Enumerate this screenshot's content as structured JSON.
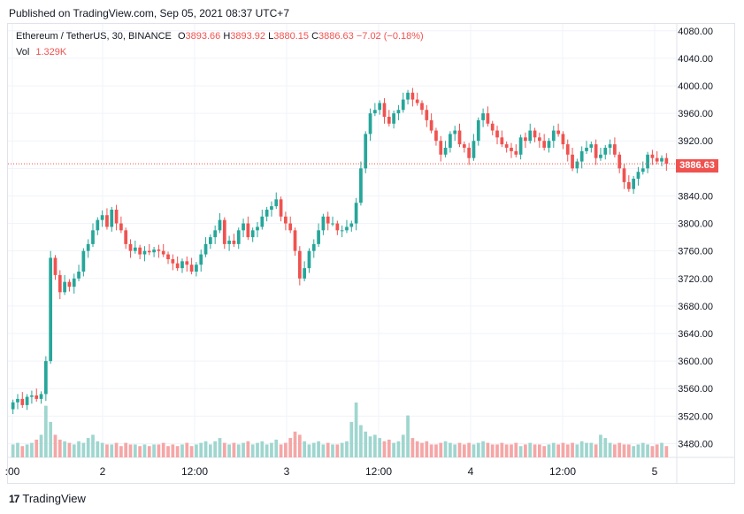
{
  "published": "Published on TradingView.com, Sep 05, 2021 08:37 UTC+7",
  "legend": {
    "symbol": "Ethereum / TetherUS, 30, BINANCE",
    "open_label": "O",
    "open": "3893.66",
    "high_label": "H",
    "high": "3893.92",
    "low_label": "L",
    "low": "3880.15",
    "close_label": "C",
    "close": "3886.63",
    "change": "−7.02 (−0.18%)"
  },
  "volume": {
    "label": "Vol",
    "value": "1.329K"
  },
  "last_price": "3886.63",
  "footer": {
    "brand": "TradingView",
    "logo": "17"
  },
  "colors": {
    "up": "#26a69a",
    "down": "#ef5350",
    "up_vol": "#9fd6cf",
    "down_vol": "#f5a6a6",
    "grid": "#f0f3fa"
  },
  "chart_data": {
    "type": "candlestick",
    "ylim": [
      3460,
      4090
    ],
    "y_ticks": [
      "4080.00",
      "4040.00",
      "4000.00",
      "3960.00",
      "3920.00",
      "3880.00",
      "3840.00",
      "3800.00",
      "3760.00",
      "3720.00",
      "3680.00",
      "3640.00",
      "3600.00",
      "3560.00",
      "3520.00",
      "3480.00"
    ],
    "x_ticks": [
      ":00",
      "2",
      "12:00",
      "3",
      "12:00",
      "4",
      "12:00",
      "5"
    ],
    "grid": true,
    "candles_close": [
      3540,
      3545,
      3536,
      3548,
      3550,
      3545,
      3552,
      3600,
      3750,
      3725,
      3700,
      3715,
      3708,
      3720,
      3730,
      3760,
      3770,
      3790,
      3805,
      3812,
      3795,
      3820,
      3800,
      3790,
      3770,
      3760,
      3765,
      3755,
      3760,
      3758,
      3762,
      3760,
      3755,
      3748,
      3742,
      3735,
      3745,
      3740,
      3730,
      3740,
      3755,
      3770,
      3780,
      3790,
      3805,
      3770,
      3775,
      3770,
      3790,
      3800,
      3780,
      3790,
      3795,
      3810,
      3820,
      3825,
      3835,
      3810,
      3800,
      3790,
      3760,
      3720,
      3735,
      3760,
      3770,
      3790,
      3810,
      3800,
      3800,
      3790,
      3790,
      3795,
      3800,
      3830,
      3880,
      3930,
      3960,
      3965,
      3975,
      3955,
      3945,
      3960,
      3965,
      3980,
      3990,
      3980,
      3975,
      3965,
      3950,
      3935,
      3920,
      3900,
      3910,
      3930,
      3935,
      3915,
      3910,
      3895,
      3920,
      3950,
      3960,
      3945,
      3935,
      3925,
      3915,
      3910,
      3905,
      3900,
      3925,
      3920,
      3935,
      3925,
      3920,
      3910,
      3920,
      3935,
      3930,
      3915,
      3900,
      3880,
      3890,
      3905,
      3910,
      3915,
      3895,
      3900,
      3910,
      3915,
      3900,
      3880,
      3860,
      3850,
      3865,
      3875,
      3880,
      3900,
      3895,
      3890,
      3895,
      3886.63
    ],
    "volumes": [
      8,
      9,
      7,
      8,
      9,
      11,
      14,
      32,
      22,
      14,
      11,
      10,
      9,
      8,
      10,
      9,
      12,
      14,
      10,
      9,
      8,
      8,
      9,
      7,
      9,
      8,
      8,
      7,
      8,
      7,
      8,
      8,
      9,
      7,
      8,
      7,
      8,
      9,
      7,
      8,
      9,
      10,
      8,
      10,
      12,
      9,
      8,
      9,
      8,
      9,
      10,
      8,
      9,
      10,
      8,
      9,
      11,
      8,
      9,
      12,
      16,
      14,
      10,
      8,
      9,
      10,
      8,
      9,
      8,
      8,
      9,
      10,
      22,
      34,
      20,
      16,
      13,
      14,
      12,
      10,
      11,
      9,
      10,
      14,
      26,
      12,
      10,
      9,
      10,
      8,
      8,
      9,
      10,
      9,
      8,
      9,
      8,
      9,
      8,
      9,
      10,
      9,
      8,
      8,
      9,
      8,
      8,
      9,
      7,
      8,
      9,
      8,
      8,
      7,
      8,
      9,
      8,
      9,
      8,
      9,
      8,
      10,
      9,
      9,
      8,
      14,
      12,
      9,
      8,
      9,
      8,
      8,
      7,
      8,
      9,
      8,
      7,
      8,
      9,
      7
    ]
  }
}
